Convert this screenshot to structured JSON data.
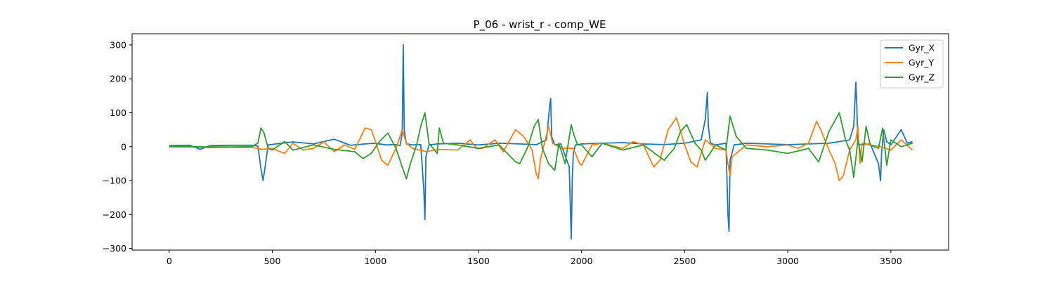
{
  "chart_data": {
    "type": "line",
    "title": "P_06 - wrist_r - comp_WE",
    "xlabel": "",
    "ylabel": "",
    "xlim": [
      -180,
      3780
    ],
    "ylim": [
      -305,
      333
    ],
    "xticks": [
      0,
      500,
      1000,
      1500,
      2000,
      2500,
      3000,
      3500
    ],
    "yticks": [
      -300,
      -200,
      -100,
      0,
      100,
      200,
      300
    ],
    "xtick_labels": [
      "0",
      "500",
      "1000",
      "1500",
      "2000",
      "2500",
      "3000",
      "3500"
    ],
    "ytick_labels": [
      "−300",
      "−200",
      "−100",
      "0",
      "100",
      "200",
      "300"
    ],
    "grid": false,
    "legend_position": "upper-right",
    "series": [
      {
        "name": "Gyr_X",
        "color": "#1f77b4",
        "x": [
          0,
          100,
          150,
          200,
          300,
          400,
          430,
          445,
          455,
          465,
          480,
          520,
          600,
          700,
          800,
          880,
          950,
          1000,
          1050,
          1100,
          1120,
          1130,
          1135,
          1140,
          1150,
          1180,
          1220,
          1235,
          1240,
          1245,
          1260,
          1300,
          1400,
          1500,
          1600,
          1700,
          1780,
          1830,
          1845,
          1850,
          1855,
          1870,
          1900,
          1940,
          1950,
          1955,
          1960,
          1970,
          2000,
          2100,
          2200,
          2300,
          2400,
          2500,
          2580,
          2600,
          2610,
          2615,
          2625,
          2650,
          2700,
          2710,
          2715,
          2720,
          2740,
          2800,
          2900,
          3000,
          3100,
          3200,
          3300,
          3320,
          3330,
          3335,
          3340,
          3350,
          3400,
          3440,
          3450,
          3455,
          3465,
          3480,
          3500,
          3550,
          3580,
          3605
        ],
        "y": [
          3,
          4,
          -8,
          3,
          4,
          4,
          2,
          -65,
          -100,
          -60,
          5,
          8,
          14,
          8,
          22,
          4,
          8,
          10,
          5,
          6,
          3,
          40,
          300,
          50,
          8,
          5,
          6,
          -130,
          -215,
          -30,
          5,
          8,
          10,
          5,
          10,
          8,
          6,
          20,
          120,
          142,
          30,
          5,
          8,
          -60,
          -272,
          -90,
          -20,
          5,
          8,
          10,
          12,
          8,
          6,
          10,
          20,
          80,
          160,
          60,
          10,
          5,
          10,
          -200,
          -250,
          -40,
          5,
          10,
          8,
          6,
          8,
          10,
          20,
          60,
          190,
          120,
          10,
          5,
          8,
          -50,
          -100,
          -20,
          50,
          15,
          5,
          50,
          10,
          15
        ]
      },
      {
        "name": "Gyr_Y",
        "color": "#ff7f0e",
        "x": [
          0,
          100,
          200,
          300,
          400,
          450,
          500,
          560,
          600,
          650,
          700,
          750,
          800,
          850,
          900,
          950,
          980,
          1000,
          1030,
          1060,
          1100,
          1130,
          1150,
          1180,
          1250,
          1300,
          1400,
          1460,
          1490,
          1520,
          1580,
          1620,
          1680,
          1720,
          1760,
          1780,
          1790,
          1800,
          1840,
          1860,
          1900,
          1960,
          1990,
          2000,
          2050,
          2100,
          2200,
          2250,
          2300,
          2350,
          2380,
          2420,
          2460,
          2500,
          2530,
          2560,
          2600,
          2650,
          2700,
          2710,
          2720,
          2730,
          2800,
          2900,
          3000,
          3050,
          3100,
          3140,
          3160,
          3200,
          3230,
          3250,
          3270,
          3300,
          3330,
          3340,
          3350,
          3360,
          3400,
          3450,
          3500,
          3550,
          3605
        ],
        "y": [
          0,
          -1,
          -3,
          -2,
          -2,
          -8,
          -5,
          -20,
          10,
          -10,
          -5,
          14,
          -15,
          5,
          -8,
          55,
          50,
          15,
          -40,
          -55,
          -5,
          50,
          10,
          -5,
          -15,
          -8,
          -10,
          20,
          -5,
          -5,
          20,
          -15,
          50,
          30,
          -10,
          -80,
          -95,
          -40,
          60,
          10,
          -5,
          -5,
          -50,
          -55,
          5,
          10,
          -5,
          15,
          5,
          -60,
          -40,
          50,
          85,
          5,
          -45,
          -60,
          20,
          -5,
          -10,
          -50,
          -85,
          -30,
          5,
          0,
          5,
          -5,
          10,
          75,
          50,
          -10,
          -50,
          -100,
          -85,
          -10,
          20,
          60,
          -50,
          10,
          5,
          0,
          -10,
          20,
          -10
        ]
      },
      {
        "name": "Gyr_Z",
        "color": "#2ca02c",
        "x": [
          0,
          100,
          200,
          300,
          400,
          430,
          445,
          460,
          480,
          500,
          560,
          600,
          700,
          800,
          900,
          940,
          980,
          1020,
          1060,
          1100,
          1130,
          1150,
          1170,
          1200,
          1220,
          1240,
          1260,
          1300,
          1310,
          1330,
          1400,
          1500,
          1600,
          1680,
          1700,
          1740,
          1770,
          1790,
          1810,
          1840,
          1870,
          1890,
          1920,
          1950,
          1960,
          1980,
          2000,
          2050,
          2100,
          2200,
          2300,
          2400,
          2450,
          2480,
          2510,
          2550,
          2580,
          2600,
          2650,
          2700,
          2720,
          2750,
          2800,
          2900,
          3000,
          3100,
          3150,
          3200,
          3250,
          3280,
          3300,
          3320,
          3340,
          3360,
          3380,
          3400,
          3440,
          3460,
          3480,
          3500,
          3550,
          3605
        ],
        "y": [
          0,
          0,
          -1,
          -1,
          0,
          10,
          55,
          40,
          -5,
          -10,
          15,
          -10,
          5,
          -8,
          -15,
          -35,
          -20,
          15,
          40,
          -5,
          -60,
          -95,
          -50,
          5,
          60,
          100,
          10,
          -20,
          55,
          10,
          5,
          -5,
          5,
          -45,
          -50,
          0,
          60,
          80,
          -5,
          -50,
          -70,
          10,
          -50,
          65,
          40,
          5,
          5,
          -30,
          10,
          -10,
          5,
          -40,
          -5,
          45,
          65,
          10,
          -10,
          -40,
          5,
          -10,
          90,
          30,
          -5,
          -10,
          -20,
          -5,
          -45,
          45,
          100,
          20,
          -10,
          -90,
          20,
          -45,
          60,
          5,
          -5,
          55,
          -55,
          20,
          0,
          10
        ]
      }
    ]
  }
}
